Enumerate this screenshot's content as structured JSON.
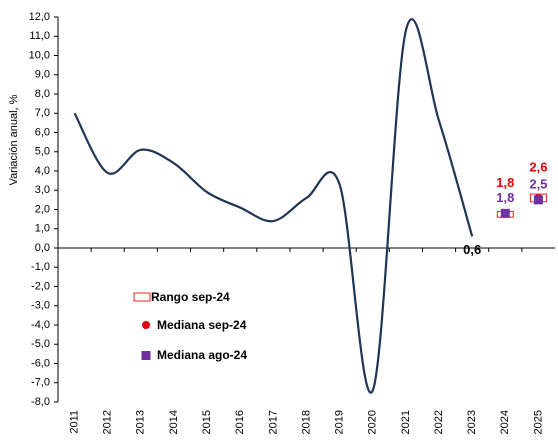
{
  "chart_data": {
    "type": "line",
    "y_label": "Variación anual, %",
    "categories": [
      "2011",
      "2012",
      "2013",
      "2014",
      "2015",
      "2016",
      "2017",
      "2018",
      "2019",
      "2020",
      "2021",
      "2022",
      "2023",
      "2024",
      "2025"
    ],
    "values": [
      7.0,
      3.9,
      5.1,
      4.4,
      2.9,
      2.1,
      1.4,
      2.6,
      3.3,
      -7.4,
      11.3,
      6.6,
      0.6,
      null,
      null
    ],
    "value_labels": [
      null,
      null,
      null,
      null,
      null,
      null,
      null,
      null,
      null,
      null,
      null,
      null,
      "0,6",
      null,
      null
    ],
    "color": "#1f3556",
    "series": [
      {
        "name": "Rango sep-24",
        "color": "#e8261c",
        "low": [
          null,
          null,
          null,
          null,
          null,
          null,
          null,
          null,
          null,
          null,
          null,
          null,
          null,
          1.6,
          2.4
        ],
        "high": [
          null,
          null,
          null,
          null,
          null,
          null,
          null,
          null,
          null,
          null,
          null,
          null,
          null,
          1.9,
          2.8
        ]
      },
      {
        "name": "Mediana sep-24",
        "color": "#e8000b",
        "values": [
          null,
          null,
          null,
          null,
          null,
          null,
          null,
          null,
          null,
          null,
          null,
          null,
          null,
          1.8,
          2.6
        ],
        "value_labels": [
          null,
          null,
          null,
          null,
          null,
          null,
          null,
          null,
          null,
          null,
          null,
          null,
          null,
          "1,8",
          "2,6"
        ]
      },
      {
        "name": "Mediana ago-24",
        "color": "#7030a0",
        "values": [
          null,
          null,
          null,
          null,
          null,
          null,
          null,
          null,
          null,
          null,
          null,
          null,
          null,
          1.8,
          2.5
        ],
        "value_labels": [
          null,
          null,
          null,
          null,
          null,
          null,
          null,
          null,
          null,
          null,
          null,
          null,
          null,
          "1,8",
          "2,5"
        ]
      }
    ],
    "ylim": [
      -8,
      12
    ],
    "yticks": [
      {
        "value": -8,
        "label": "-8,0"
      },
      {
        "value": -7,
        "label": "-7,0"
      },
      {
        "value": -6,
        "label": "-6,0"
      },
      {
        "value": -5,
        "label": "-5,0"
      },
      {
        "value": -4,
        "label": "-4,0"
      },
      {
        "value": -3,
        "label": "-3,0"
      },
      {
        "value": -2,
        "label": "-2,0"
      },
      {
        "value": -1,
        "label": "-1,0"
      },
      {
        "value": 0,
        "label": "0,0"
      },
      {
        "value": 1,
        "label": "1,0"
      },
      {
        "value": 2,
        "label": "2,0"
      },
      {
        "value": 3,
        "label": "3,0"
      },
      {
        "value": 4,
        "label": "4,0"
      },
      {
        "value": 5,
        "label": "5,0"
      },
      {
        "value": 6,
        "label": "6,0"
      },
      {
        "value": 7,
        "label": "7,0"
      },
      {
        "value": 8,
        "label": "8,0"
      },
      {
        "value": 9,
        "label": "9,0"
      },
      {
        "value": 10,
        "label": "10,0"
      },
      {
        "value": 11,
        "label": "11,0"
      },
      {
        "value": 12,
        "label": "12,0"
      }
    ]
  }
}
